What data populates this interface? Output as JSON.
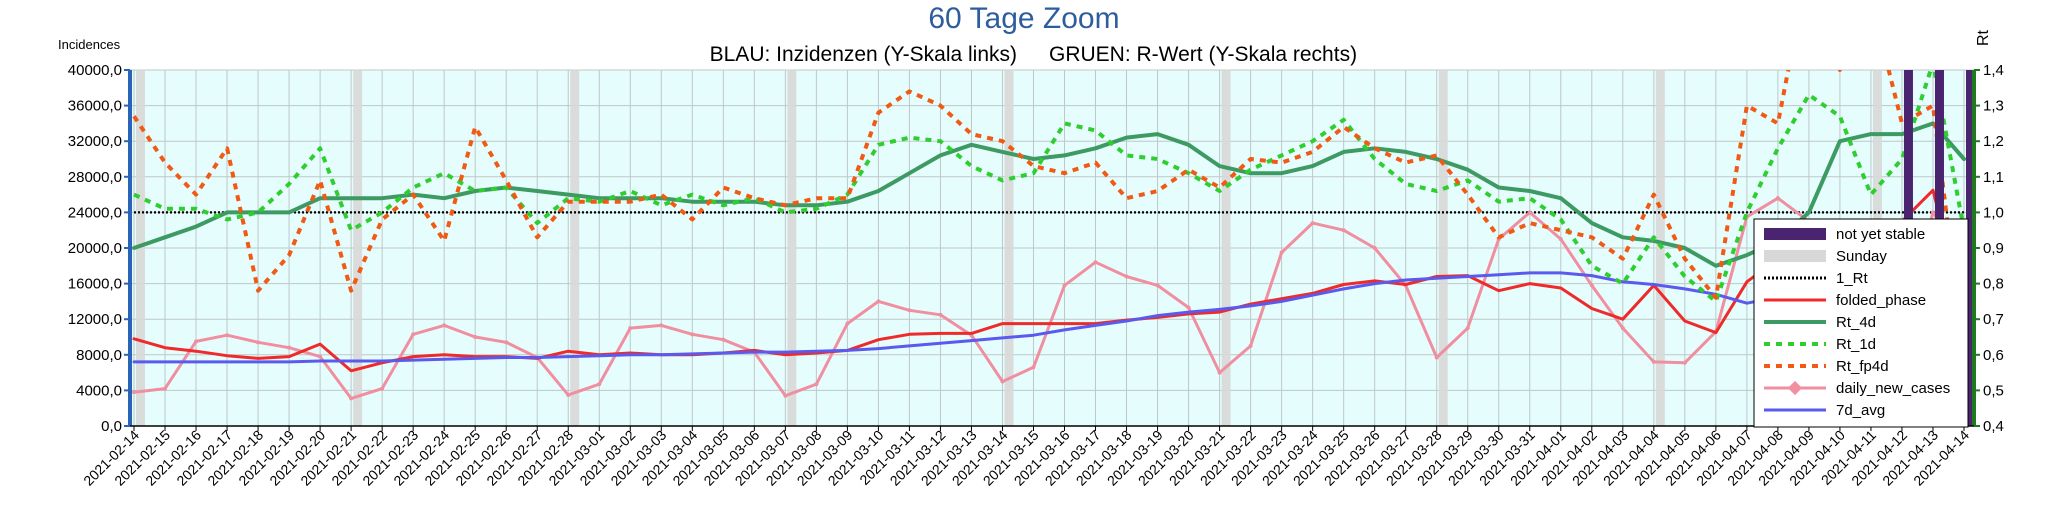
{
  "chart_data": {
    "type": "line",
    "title": "60 Tage Zoom",
    "subtitle_left": "BLAU: Inzidenzen (Y-Skala links)",
    "subtitle_right": "GRUEN: R-Wert (Y-Skala rechts)",
    "ylabel_left": "Incidences",
    "ylabel_right": "Rt",
    "ylim_left": [
      0,
      40000
    ],
    "ylim_right": [
      0.4,
      1.4
    ],
    "yticks_left": [
      "0,0",
      "4000,0",
      "8000,0",
      "12000,0",
      "16000,0",
      "20000,0",
      "24000,0",
      "28000,0",
      "32000,0",
      "36000,0",
      "40000,0"
    ],
    "yticks_right": [
      "0,4",
      "0,5",
      "0,6",
      "0,7",
      "0,8",
      "0,9",
      "1,0",
      "1,1",
      "1,2",
      "1,3",
      "1,4"
    ],
    "x": [
      "2021-02-14",
      "2021-02-15",
      "2021-02-16",
      "2021-02-17",
      "2021-02-18",
      "2021-02-19",
      "2021-02-20",
      "2021-02-21",
      "2021-02-22",
      "2021-02-23",
      "2021-02-24",
      "2021-02-25",
      "2021-02-26",
      "2021-02-27",
      "2021-02-28",
      "2021-03-01",
      "2021-03-02",
      "2021-03-03",
      "2021-03-04",
      "2021-03-05",
      "2021-03-06",
      "2021-03-07",
      "2021-03-08",
      "2021-03-09",
      "2021-03-10",
      "2021-03-11",
      "2021-03-12",
      "2021-03-13",
      "2021-03-14",
      "2021-03-15",
      "2021-03-16",
      "2021-03-17",
      "2021-03-18",
      "2021-03-19",
      "2021-03-20",
      "2021-03-21",
      "2021-03-22",
      "2021-03-23",
      "2021-03-24",
      "2021-03-25",
      "2021-03-26",
      "2021-03-27",
      "2021-03-28",
      "2021-03-29",
      "2021-03-30",
      "2021-03-31",
      "2021-04-01",
      "2021-04-02",
      "2021-04-03",
      "2021-04-04",
      "2021-04-05",
      "2021-04-06",
      "2021-04-07",
      "2021-04-08",
      "2021-04-09",
      "2021-04-10",
      "2021-04-11",
      "2021-04-12",
      "2021-04-13",
      "2021-04-14"
    ],
    "sunday_indices": [
      0,
      7,
      14,
      21,
      28,
      35,
      42,
      49,
      56
    ],
    "not_yet_stable_indices": [
      57,
      58,
      59
    ],
    "reference_line_rt": 1.0,
    "grid": true,
    "legend_position": "right",
    "series_incidence": [
      {
        "name": "daily_new_cases",
        "color": "#ef8fa0",
        "style": "solid-marker",
        "values": [
          3800,
          4200,
          9500,
          10200,
          9400,
          8800,
          7800,
          3100,
          4200,
          10300,
          11300,
          10000,
          9400,
          7700,
          3500,
          4700,
          11000,
          11300,
          10300,
          9700,
          8300,
          3400,
          4700,
          11500,
          14000,
          13000,
          12500,
          10200,
          5000,
          6600,
          15800,
          18400,
          16800,
          15800,
          13300,
          6000,
          9000,
          19500,
          22800,
          22000,
          20000,
          15800,
          7700,
          11000,
          21000,
          24000,
          21000,
          15800,
          11000,
          7200,
          7100,
          10600,
          23500,
          25600,
          23000,
          18000,
          9000,
          11200,
          24000,
          19000
        ]
      },
      {
        "name": "folded_phase",
        "color": "#ee2a2a",
        "style": "solid",
        "values": [
          9800,
          8800,
          8400,
          7900,
          7600,
          7800,
          9200,
          6200,
          7100,
          7800,
          8000,
          7800,
          7800,
          7600,
          8400,
          8000,
          8200,
          8000,
          8000,
          8200,
          8500,
          8000,
          8200,
          8500,
          9700,
          10300,
          10400,
          10400,
          11500,
          11500,
          11500,
          11500,
          11900,
          12200,
          12600,
          12800,
          13700,
          14300,
          14900,
          15900,
          16300,
          15900,
          16800,
          16900,
          15200,
          16000,
          15500,
          13200,
          12000,
          15800,
          11800,
          10500,
          16200,
          18800,
          21800,
          23000,
          18800,
          23000,
          26500,
          12800
        ]
      },
      {
        "name": "7d_avg",
        "color": "#5a5aee",
        "style": "solid",
        "values": [
          7200,
          7200,
          7200,
          7200,
          7200,
          7200,
          7300,
          7300,
          7300,
          7400,
          7500,
          7600,
          7700,
          7700,
          7800,
          7900,
          8000,
          8000,
          8100,
          8200,
          8300,
          8300,
          8400,
          8500,
          8700,
          9000,
          9300,
          9600,
          9900,
          10200,
          10800,
          11300,
          11800,
          12400,
          12800,
          13100,
          13500,
          14000,
          14700,
          15400,
          16000,
          16400,
          16600,
          16800,
          17000,
          17200,
          17200,
          16900,
          16200,
          15900,
          15400,
          14800,
          13800,
          14500,
          15400,
          16400,
          17000,
          17800,
          19000,
          18800
        ]
      }
    ],
    "series_rt": [
      {
        "name": "Rt_4d",
        "color": "#3c9a62",
        "style": "solid",
        "values": [
          0.9,
          0.93,
          0.96,
          1.0,
          1.0,
          1.0,
          1.04,
          1.04,
          1.04,
          1.05,
          1.04,
          1.06,
          1.07,
          1.06,
          1.05,
          1.04,
          1.04,
          1.04,
          1.03,
          1.03,
          1.03,
          1.02,
          1.02,
          1.03,
          1.06,
          1.11,
          1.16,
          1.19,
          1.17,
          1.15,
          1.16,
          1.18,
          1.21,
          1.22,
          1.19,
          1.13,
          1.11,
          1.11,
          1.13,
          1.17,
          1.18,
          1.17,
          1.15,
          1.12,
          1.07,
          1.06,
          1.04,
          0.97,
          0.93,
          0.92,
          0.9,
          0.85,
          0.88,
          0.92,
          1.0,
          1.2,
          1.22,
          1.22,
          1.25,
          1.15
        ]
      },
      {
        "name": "Rt_1d",
        "color": "#2fce2f",
        "style": "dotted",
        "values": [
          1.05,
          1.01,
          1.01,
          0.98,
          1.0,
          1.08,
          1.18,
          0.95,
          1.0,
          1.07,
          1.11,
          1.06,
          1.07,
          0.97,
          1.04,
          1.03,
          1.06,
          1.02,
          1.05,
          1.02,
          1.04,
          1.0,
          1.01,
          1.05,
          1.19,
          1.21,
          1.2,
          1.13,
          1.09,
          1.11,
          1.25,
          1.23,
          1.16,
          1.15,
          1.11,
          1.06,
          1.12,
          1.16,
          1.2,
          1.26,
          1.15,
          1.08,
          1.06,
          1.09,
          1.03,
          1.04,
          0.98,
          0.85,
          0.8,
          0.93,
          0.82,
          0.75,
          1.0,
          1.18,
          1.33,
          1.27,
          1.05,
          1.15,
          1.42,
          0.95
        ]
      },
      {
        "name": "Rt_fp4d",
        "color": "#f05a14",
        "style": "dotted",
        "values": [
          1.27,
          1.14,
          1.05,
          1.18,
          0.78,
          0.88,
          1.09,
          0.78,
          0.98,
          1.05,
          0.92,
          1.24,
          1.09,
          0.93,
          1.03,
          1.03,
          1.03,
          1.05,
          0.98,
          1.07,
          1.04,
          1.02,
          1.04,
          1.04,
          1.28,
          1.34,
          1.3,
          1.22,
          1.2,
          1.13,
          1.11,
          1.14,
          1.04,
          1.06,
          1.12,
          1.07,
          1.15,
          1.14,
          1.17,
          1.24,
          1.18,
          1.14,
          1.16,
          1.05,
          0.93,
          0.97,
          0.95,
          0.93,
          0.87,
          1.05,
          0.87,
          0.76,
          1.3,
          1.25,
          1.7,
          1.4,
          1.6,
          1.25,
          1.3,
          0.6
        ]
      }
    ],
    "one_rt_name": "1_Rt",
    "sunday_name": "Sunday",
    "not_yet_stable_name": "not yet stable",
    "colors": {
      "plot_bg": "#e6fdfd",
      "grid": "#bfc7c7",
      "sunday": "#d8d8d8",
      "not_yet_stable": "#4b2470",
      "left_axis": "#2a64b8",
      "right_axis": "#1f7a1f",
      "title": "#2e5d9e"
    }
  }
}
